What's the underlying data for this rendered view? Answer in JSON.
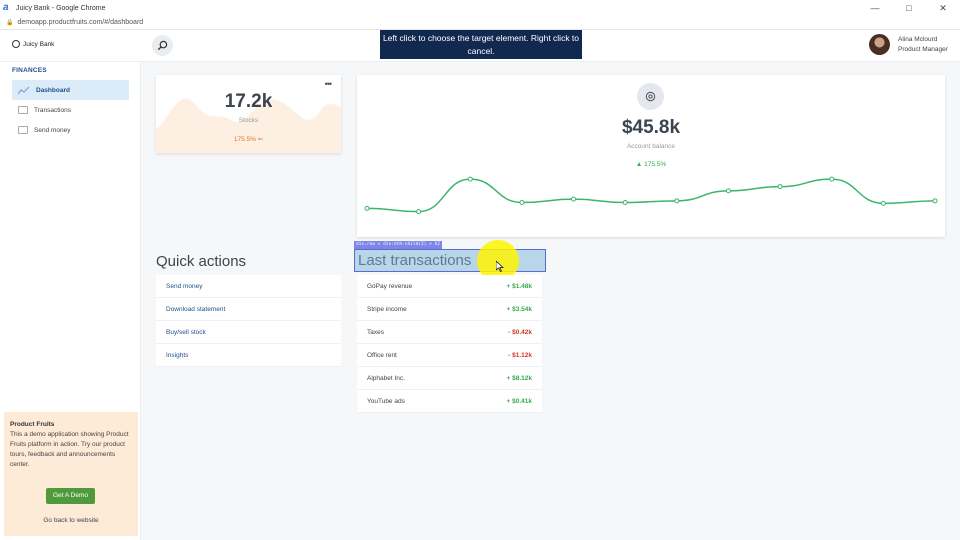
{
  "window": {
    "title": "Juicy Bank - Google Chrome",
    "url": "demoapp.productfruits.com/#/dashboard"
  },
  "header": {
    "brand": "Juicy Bank",
    "banner": "Left click to choose the target element. Right click to cancel.",
    "user_name": "Alina Mclourd",
    "user_role": "Product Manager"
  },
  "sidebar": {
    "section": "FINANCES",
    "items": [
      {
        "label": "Dashboard",
        "active": true
      },
      {
        "label": "Transactions",
        "active": false
      },
      {
        "label": "Send money",
        "active": false
      }
    ],
    "promo": {
      "title": "Product Fruits",
      "text": "This a demo application showing Product Fruits platform in action. Try our product tours, feedback and announcements center.",
      "button": "Get A Demo",
      "link": "Go back to website"
    }
  },
  "stocks": {
    "value": "17.2k",
    "label": "Stocks",
    "change": "175.5% ⇐"
  },
  "balance": {
    "value": "$45.8k",
    "label": "Account balance",
    "change": "175.5%"
  },
  "chart_data": {
    "type": "line",
    "series": [
      {
        "values": [
          20,
          16,
          55,
          27,
          31,
          27,
          29,
          41,
          46,
          55,
          26,
          29
        ]
      }
    ],
    "color": "#3bb56a"
  },
  "quick_actions": {
    "title": "Quick actions",
    "items": [
      "Send money",
      "Download statement",
      "Buy/sell stock",
      "Insights"
    ]
  },
  "transactions": {
    "title": "Last transactions",
    "selector_tag": "div.row > div:nth-child(2) > h2",
    "items": [
      {
        "name": "GoPay revenue",
        "amount": "+ $1.48k",
        "sign": "pos"
      },
      {
        "name": "Stripe income",
        "amount": "+ $3.54k",
        "sign": "pos"
      },
      {
        "name": "Taxes",
        "amount": "- $0.42k",
        "sign": "neg"
      },
      {
        "name": "Office rent",
        "amount": "- $1.12k",
        "sign": "neg"
      },
      {
        "name": "Alphabet Inc.",
        "amount": "+ $8.12k",
        "sign": "pos"
      },
      {
        "name": "YouTube ads",
        "amount": "+ $0.41k",
        "sign": "pos"
      }
    ]
  }
}
